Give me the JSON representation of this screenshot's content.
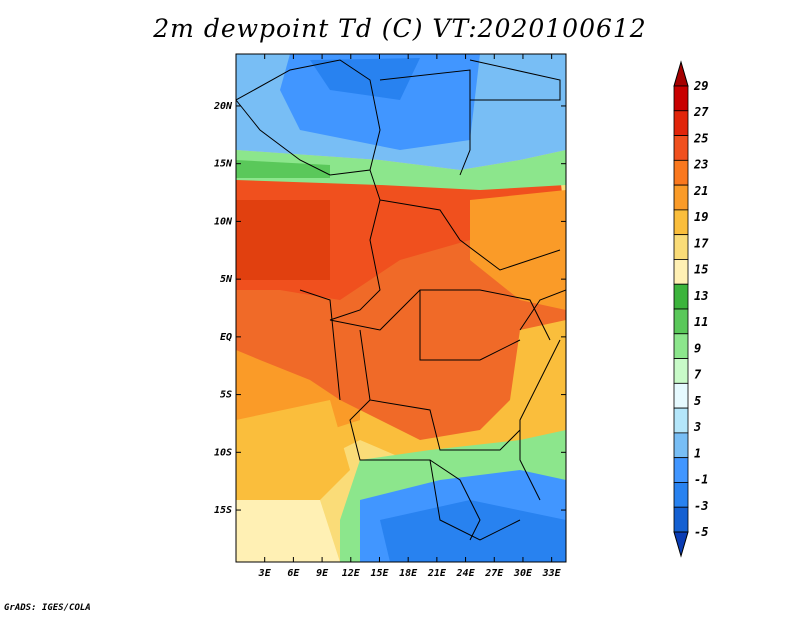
{
  "title": "2m dewpoint Td (C) VT:2020100612",
  "footer": "GrADS: IGES/COLA",
  "map": {
    "lon_ticks": [
      "3E",
      "6E",
      "9E",
      "12E",
      "15E",
      "18E",
      "21E",
      "24E",
      "27E",
      "30E",
      "33E"
    ],
    "lat_ticks": [
      "20N",
      "15N",
      "10N",
      "5N",
      "EQ",
      "5S",
      "10S",
      "15S"
    ],
    "lon_range": [
      0,
      34.5
    ],
    "lat_range": [
      -19.5,
      24.5
    ]
  },
  "colorbar": {
    "labels": [
      "29",
      "27",
      "25",
      "23",
      "21",
      "19",
      "17",
      "15",
      "13",
      "11",
      "9",
      "7",
      "5",
      "3",
      "1",
      "-1",
      "-3",
      "-5"
    ],
    "colors": [
      "#a50000",
      "#c80000",
      "#e1250a",
      "#f0501e",
      "#fa781e",
      "#fa9b28",
      "#fabe3c",
      "#fadc78",
      "#fff0b4",
      "#3cb43c",
      "#5ac85a",
      "#8ce68c",
      "#c8fac8",
      "#e6faff",
      "#b4e6fa",
      "#78bef5",
      "#4196ff",
      "#2882f0",
      "#1460d2",
      "#0a3cb4"
    ]
  },
  "regions": {
    "sahara": "#2c82ec",
    "sahel_green": "#5ac85a",
    "west_africa": "#f0501e",
    "congo": "#f06a28",
    "south": "#fabe3c",
    "south_blue": "#3c8cf0"
  }
}
